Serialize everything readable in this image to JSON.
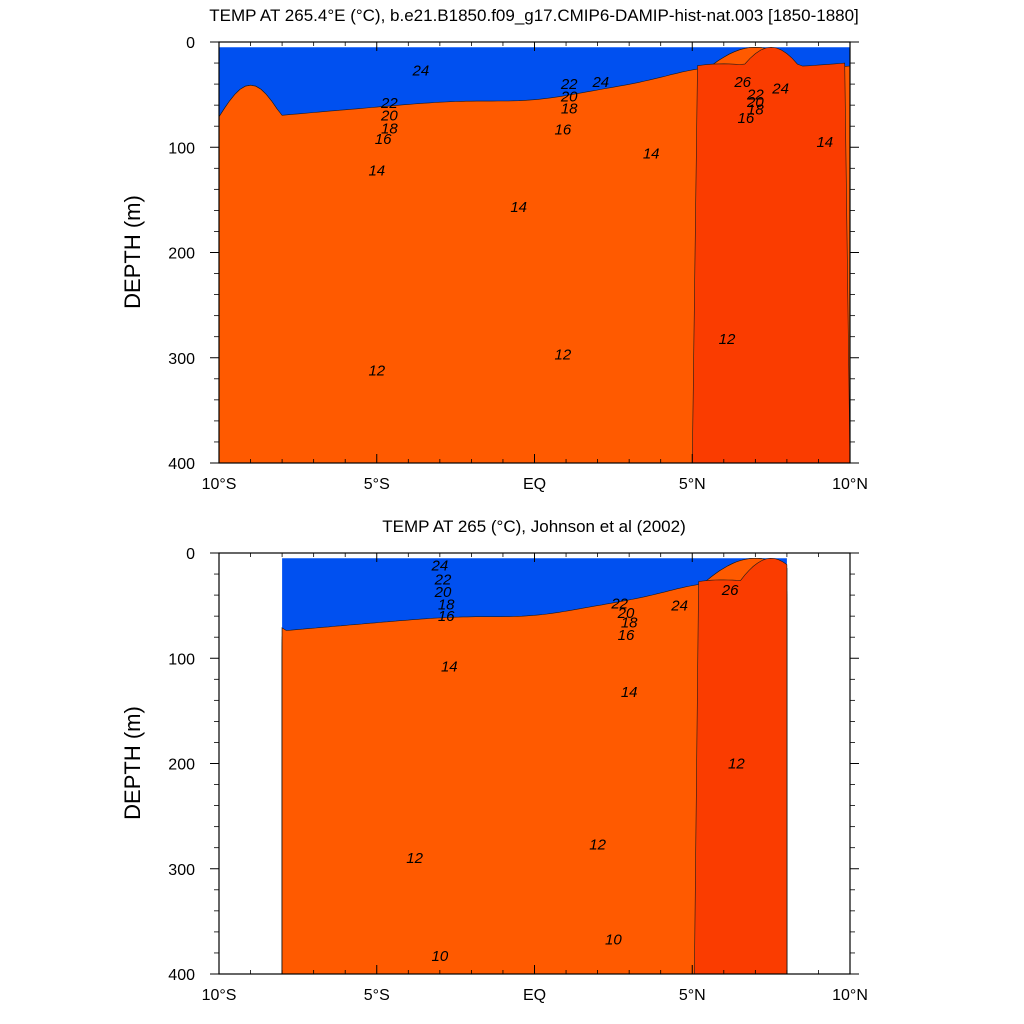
{
  "chart_data": [
    {
      "type": "contour",
      "title": "TEMP AT 265.4°E (°C), b.e21.B1850.f09_g17.CMIP6-DAMIP-hist-nat.003 [1850-1880]",
      "ylabel": "DEPTH (m)",
      "xlabel": "",
      "xticklabels": [
        "10°S",
        "5°S",
        "EQ",
        "5°N",
        "10°N"
      ],
      "xticks": [
        -10,
        -5,
        0,
        5,
        10
      ],
      "yticklabels": [
        "0",
        "100",
        "200",
        "300",
        "400"
      ],
      "yticks": [
        0,
        100,
        200,
        300,
        400
      ],
      "xlim": [
        -10,
        10
      ],
      "ylim": [
        0,
        400
      ],
      "y_reversed": true,
      "data_xlim": [
        -10,
        10
      ],
      "data_ylim": [
        5,
        400
      ],
      "contour_levels": [
        10,
        10.5,
        11,
        11.5,
        12,
        12.5,
        13,
        13.5,
        14,
        14.5,
        15,
        15.5,
        16,
        17,
        18,
        19,
        20,
        21,
        22,
        23,
        24,
        25,
        26,
        27
      ],
      "labeled_contours": [
        {
          "text": "24",
          "x": -3.6,
          "y": 27
        },
        {
          "text": "22",
          "x": -4.6,
          "y": 58
        },
        {
          "text": "20",
          "x": -4.6,
          "y": 70
        },
        {
          "text": "18",
          "x": -4.6,
          "y": 82
        },
        {
          "text": "16",
          "x": -4.8,
          "y": 92
        },
        {
          "text": "22",
          "x": 1.1,
          "y": 40
        },
        {
          "text": "24",
          "x": 2.1,
          "y": 38
        },
        {
          "text": "20",
          "x": 1.1,
          "y": 52
        },
        {
          "text": "18",
          "x": 1.1,
          "y": 63
        },
        {
          "text": "16",
          "x": 0.9,
          "y": 83
        },
        {
          "text": "26",
          "x": 6.6,
          "y": 38
        },
        {
          "text": "24",
          "x": 7.8,
          "y": 44
        },
        {
          "text": "22",
          "x": 7.0,
          "y": 50
        },
        {
          "text": "20",
          "x": 7.0,
          "y": 57
        },
        {
          "text": "18",
          "x": 7.0,
          "y": 64
        },
        {
          "text": "16",
          "x": 6.7,
          "y": 72
        },
        {
          "text": "14",
          "x": -5.0,
          "y": 122
        },
        {
          "text": "14",
          "x": -0.5,
          "y": 157
        },
        {
          "text": "14",
          "x": 3.7,
          "y": 106
        },
        {
          "text": "14",
          "x": 9.2,
          "y": 95
        },
        {
          "text": "12",
          "x": -5.0,
          "y": 312
        },
        {
          "text": "12",
          "x": 0.9,
          "y": 297
        },
        {
          "text": "12",
          "x": 6.1,
          "y": 282
        }
      ]
    },
    {
      "type": "contour",
      "title": "TEMP AT 265 (°C), Johnson et al (2002)",
      "ylabel": "DEPTH (m)",
      "xlabel": "",
      "xticklabels": [
        "10°S",
        "5°S",
        "EQ",
        "5°N",
        "10°N"
      ],
      "xticks": [
        -10,
        -5,
        0,
        5,
        10
      ],
      "yticklabels": [
        "0",
        "100",
        "200",
        "300",
        "400"
      ],
      "yticks": [
        0,
        100,
        200,
        300,
        400
      ],
      "xlim": [
        -10,
        10
      ],
      "ylim": [
        0,
        400
      ],
      "y_reversed": true,
      "data_xlim": [
        -8,
        8
      ],
      "data_ylim": [
        5,
        400
      ],
      "contour_levels": [
        10,
        10.5,
        11,
        11.5,
        12,
        12.5,
        13,
        13.5,
        14,
        14.5,
        15,
        15.5,
        16,
        17,
        18,
        19,
        20,
        21,
        22,
        23,
        24,
        25,
        26,
        27
      ],
      "labeled_contours": [
        {
          "text": "24",
          "x": -3.0,
          "y": 12
        },
        {
          "text": "22",
          "x": -2.9,
          "y": 25
        },
        {
          "text": "20",
          "x": -2.9,
          "y": 37
        },
        {
          "text": "18",
          "x": -2.8,
          "y": 49
        },
        {
          "text": "16",
          "x": -2.8,
          "y": 60
        },
        {
          "text": "22",
          "x": 2.7,
          "y": 48
        },
        {
          "text": "20",
          "x": 2.9,
          "y": 57
        },
        {
          "text": "18",
          "x": 3.0,
          "y": 66
        },
        {
          "text": "16",
          "x": 2.9,
          "y": 78
        },
        {
          "text": "24",
          "x": 4.6,
          "y": 50
        },
        {
          "text": "26",
          "x": 6.2,
          "y": 35
        },
        {
          "text": "14",
          "x": -2.7,
          "y": 108
        },
        {
          "text": "14",
          "x": 3.0,
          "y": 132
        },
        {
          "text": "12",
          "x": 6.4,
          "y": 200
        },
        {
          "text": "12",
          "x": -3.8,
          "y": 290
        },
        {
          "text": "12",
          "x": 2.0,
          "y": 277
        },
        {
          "text": "10",
          "x": -3.0,
          "y": 383
        },
        {
          "text": "10",
          "x": 2.5,
          "y": 367
        }
      ]
    }
  ],
  "colors": {
    "fills": [
      "#0050f0",
      "#0a74ff",
      "#0d9bf5",
      "#00b4ff",
      "#00d2ff",
      "#00e2ff",
      "#38ecff",
      "#00f4ee",
      "#2ee8b4",
      "#00c864",
      "#22d83c",
      "#5aee00",
      "#b4f400",
      "#ffff00",
      "#fff070",
      "#ffe26e",
      "#ffd060",
      "#ffbe50",
      "#ffa63c",
      "#ff9020",
      "#ff5a00",
      "#fa3c00"
    ],
    "axes": "#000000",
    "contour_line": "#1a1a1a",
    "missing": "#ffffff"
  }
}
